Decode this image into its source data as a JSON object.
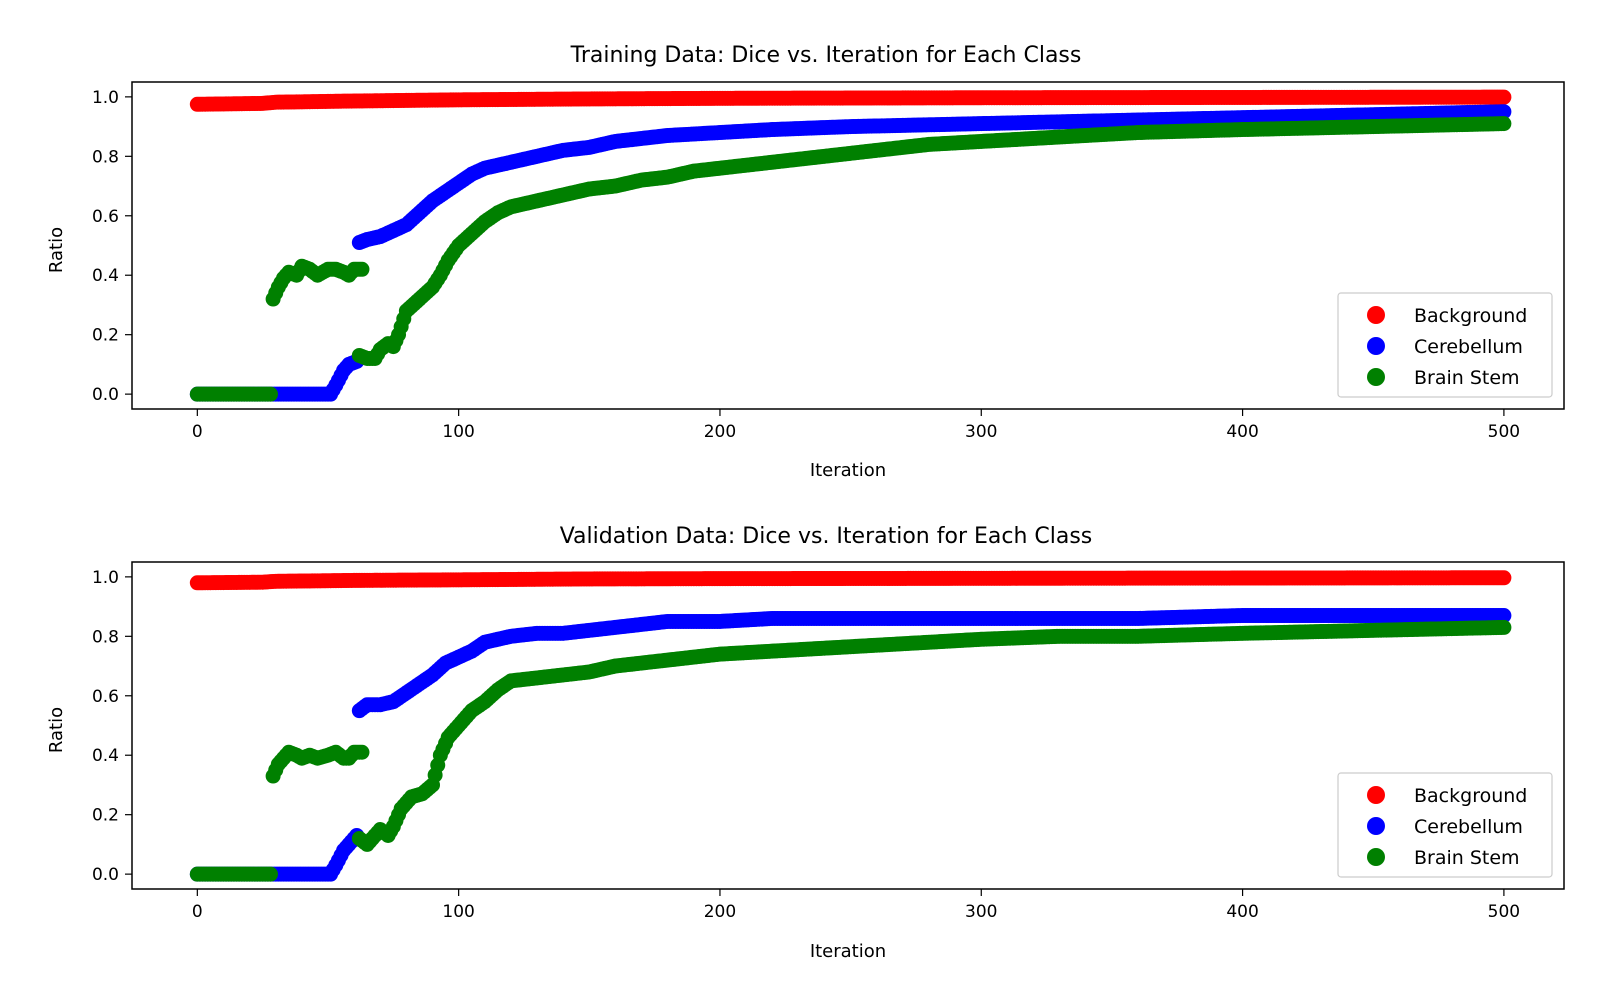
{
  "colors": {
    "background": "#ff0000",
    "cerebellum": "#0000ff",
    "brain_stem": "#008000"
  },
  "chart_data": [
    {
      "type": "scatter",
      "title": "Training Data: Dice vs. Iteration for Each Class",
      "xlabel": "Iteration",
      "ylabel": "Ratio",
      "xlim": [
        -25,
        523
      ],
      "ylim": [
        -0.05,
        1.05
      ],
      "xticks": [
        "0",
        "100",
        "200",
        "300",
        "400",
        "500"
      ],
      "yticks": [
        "0.0",
        "0.2",
        "0.4",
        "0.6",
        "0.8",
        "1.0"
      ],
      "legend": "bottom-right",
      "grid": false,
      "series": [
        {
          "name": "Background",
          "color": "#ff0000",
          "points": [
            [
              0,
              0.975
            ],
            [
              25,
              0.978
            ],
            [
              30,
              0.982
            ],
            [
              60,
              0.986
            ],
            [
              100,
              0.99
            ],
            [
              150,
              0.993
            ],
            [
              200,
              0.995
            ],
            [
              300,
              0.997
            ],
            [
              400,
              0.998
            ],
            [
              500,
              0.999
            ]
          ]
        },
        {
          "name": "Cerebellum",
          "segments": [
            [
              [
                0,
                0
              ],
              [
                51,
                0
              ],
              [
                53,
                0.03
              ],
              [
                56,
                0.08
              ],
              [
                58,
                0.1
              ],
              [
                61,
                0.11
              ]
            ],
            [
              [
                62,
                0.51
              ],
              [
                65,
                0.52
              ],
              [
                70,
                0.53
              ],
              [
                75,
                0.55
              ],
              [
                80,
                0.57
              ],
              [
                85,
                0.61
              ],
              [
                90,
                0.65
              ],
              [
                95,
                0.68
              ],
              [
                100,
                0.71
              ],
              [
                105,
                0.74
              ],
              [
                110,
                0.76
              ],
              [
                115,
                0.77
              ],
              [
                120,
                0.78
              ],
              [
                130,
                0.8
              ],
              [
                140,
                0.82
              ],
              [
                150,
                0.83
              ],
              [
                160,
                0.85
              ],
              [
                170,
                0.86
              ],
              [
                180,
                0.87
              ],
              [
                200,
                0.88
              ],
              [
                220,
                0.89
              ],
              [
                250,
                0.9
              ],
              [
                300,
                0.91
              ],
              [
                350,
                0.92
              ],
              [
                400,
                0.93
              ],
              [
                450,
                0.94
              ],
              [
                500,
                0.95
              ]
            ]
          ],
          "color": "#0000ff"
        },
        {
          "name": "Brain Stem",
          "segments": [
            [
              [
                0,
                0
              ],
              [
                28,
                0
              ]
            ],
            [
              [
                29,
                0.32
              ],
              [
                31,
                0.36
              ],
              [
                33,
                0.39
              ],
              [
                35,
                0.41
              ],
              [
                38,
                0.4
              ],
              [
                40,
                0.43
              ],
              [
                43,
                0.42
              ],
              [
                46,
                0.4
              ],
              [
                50,
                0.42
              ],
              [
                53,
                0.42
              ],
              [
                56,
                0.41
              ],
              [
                58,
                0.4
              ],
              [
                60,
                0.42
              ],
              [
                63,
                0.42
              ]
            ],
            [
              [
                62,
                0.13
              ],
              [
                65,
                0.12
              ],
              [
                68,
                0.12
              ],
              [
                70,
                0.15
              ],
              [
                73,
                0.17
              ],
              [
                75,
                0.16
              ],
              [
                77,
                0.2
              ],
              [
                80,
                0.28
              ],
              [
                85,
                0.32
              ],
              [
                90,
                0.36
              ],
              [
                93,
                0.4
              ],
              [
                96,
                0.45
              ],
              [
                100,
                0.5
              ],
              [
                105,
                0.54
              ],
              [
                110,
                0.58
              ],
              [
                115,
                0.61
              ],
              [
                120,
                0.63
              ],
              [
                130,
                0.65
              ],
              [
                140,
                0.67
              ],
              [
                150,
                0.69
              ],
              [
                160,
                0.7
              ],
              [
                170,
                0.72
              ],
              [
                180,
                0.73
              ],
              [
                190,
                0.75
              ],
              [
                200,
                0.76
              ],
              [
                220,
                0.78
              ],
              [
                240,
                0.8
              ],
              [
                260,
                0.82
              ],
              [
                280,
                0.84
              ],
              [
                300,
                0.85
              ],
              [
                320,
                0.86
              ],
              [
                340,
                0.87
              ],
              [
                360,
                0.88
              ],
              [
                400,
                0.89
              ],
              [
                450,
                0.9
              ],
              [
                500,
                0.91
              ]
            ]
          ],
          "color": "#008000"
        }
      ]
    },
    {
      "type": "scatter",
      "title": "Validation Data: Dice vs. Iteration for Each Class",
      "xlabel": "Iteration",
      "ylabel": "Ratio",
      "xlim": [
        -25,
        523
      ],
      "ylim": [
        -0.05,
        1.05
      ],
      "xticks": [
        "0",
        "100",
        "200",
        "300",
        "400",
        "500"
      ],
      "yticks": [
        "0.0",
        "0.2",
        "0.4",
        "0.6",
        "0.8",
        "1.0"
      ],
      "legend": "bottom-right",
      "grid": false,
      "series": [
        {
          "name": "Background",
          "color": "#ff0000",
          "points": [
            [
              0,
              0.98
            ],
            [
              25,
              0.982
            ],
            [
              30,
              0.985
            ],
            [
              60,
              0.988
            ],
            [
              100,
              0.99
            ],
            [
              150,
              0.993
            ],
            [
              200,
              0.994
            ],
            [
              300,
              0.995
            ],
            [
              400,
              0.996
            ],
            [
              500,
              0.997
            ]
          ]
        },
        {
          "name": "Cerebellum",
          "segments": [
            [
              [
                0,
                0
              ],
              [
                51,
                0
              ],
              [
                53,
                0.03
              ],
              [
                56,
                0.08
              ],
              [
                58,
                0.1
              ],
              [
                61,
                0.13
              ]
            ],
            [
              [
                62,
                0.55
              ],
              [
                65,
                0.57
              ],
              [
                70,
                0.57
              ],
              [
                75,
                0.58
              ],
              [
                80,
                0.61
              ],
              [
                85,
                0.64
              ],
              [
                90,
                0.67
              ],
              [
                95,
                0.71
              ],
              [
                100,
                0.73
              ],
              [
                105,
                0.75
              ],
              [
                110,
                0.78
              ],
              [
                115,
                0.79
              ],
              [
                120,
                0.8
              ],
              [
                130,
                0.81
              ],
              [
                140,
                0.81
              ],
              [
                150,
                0.82
              ],
              [
                160,
                0.83
              ],
              [
                170,
                0.84
              ],
              [
                180,
                0.85
              ],
              [
                200,
                0.85
              ],
              [
                220,
                0.86
              ],
              [
                240,
                0.86
              ],
              [
                260,
                0.86
              ],
              [
                280,
                0.86
              ],
              [
                300,
                0.86
              ],
              [
                330,
                0.86
              ],
              [
                360,
                0.86
              ],
              [
                400,
                0.87
              ],
              [
                450,
                0.87
              ],
              [
                500,
                0.87
              ]
            ]
          ],
          "color": "#0000ff"
        },
        {
          "name": "Brain Stem",
          "segments": [
            [
              [
                0,
                0
              ],
              [
                28,
                0
              ]
            ],
            [
              [
                29,
                0.33
              ],
              [
                31,
                0.37
              ],
              [
                33,
                0.39
              ],
              [
                35,
                0.41
              ],
              [
                38,
                0.4
              ],
              [
                40,
                0.39
              ],
              [
                43,
                0.4
              ],
              [
                46,
                0.39
              ],
              [
                50,
                0.4
              ],
              [
                53,
                0.41
              ],
              [
                56,
                0.39
              ],
              [
                58,
                0.39
              ],
              [
                60,
                0.41
              ],
              [
                63,
                0.41
              ]
            ],
            [
              [
                62,
                0.12
              ],
              [
                65,
                0.1
              ],
              [
                68,
                0.13
              ],
              [
                70,
                0.15
              ],
              [
                73,
                0.13
              ],
              [
                75,
                0.16
              ],
              [
                78,
                0.22
              ],
              [
                82,
                0.26
              ],
              [
                86,
                0.27
              ],
              [
                90,
                0.3
              ],
              [
                93,
                0.4
              ],
              [
                96,
                0.46
              ],
              [
                100,
                0.5
              ],
              [
                105,
                0.55
              ],
              [
                110,
                0.58
              ],
              [
                115,
                0.62
              ],
              [
                120,
                0.65
              ],
              [
                130,
                0.66
              ],
              [
                140,
                0.67
              ],
              [
                150,
                0.68
              ],
              [
                160,
                0.7
              ],
              [
                170,
                0.71
              ],
              [
                180,
                0.72
              ],
              [
                200,
                0.74
              ],
              [
                220,
                0.75
              ],
              [
                240,
                0.76
              ],
              [
                260,
                0.77
              ],
              [
                280,
                0.78
              ],
              [
                300,
                0.79
              ],
              [
                330,
                0.8
              ],
              [
                360,
                0.8
              ],
              [
                400,
                0.81
              ],
              [
                450,
                0.82
              ],
              [
                500,
                0.83
              ]
            ]
          ],
          "color": "#008000"
        }
      ]
    }
  ]
}
